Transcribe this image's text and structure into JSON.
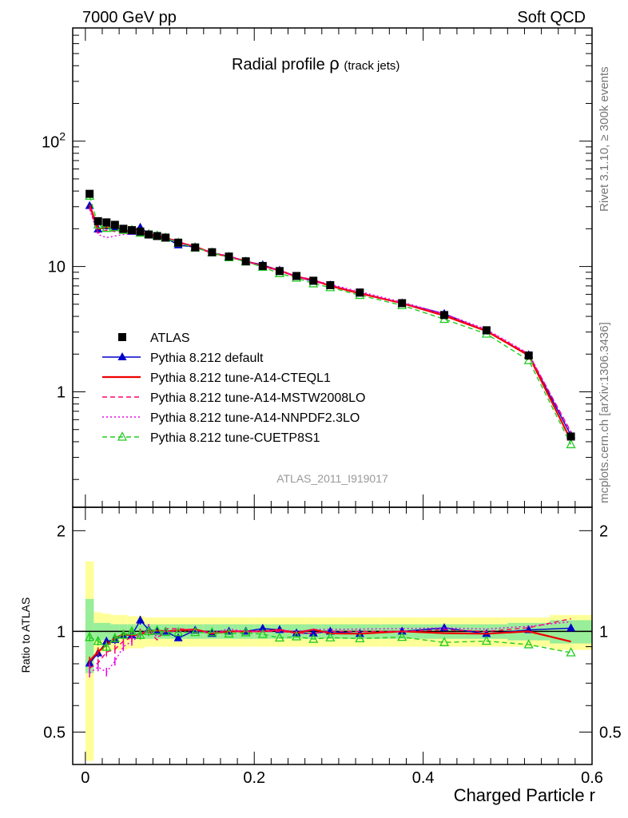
{
  "header": {
    "left": "7000 GeV pp",
    "right": "Soft QCD"
  },
  "side_labels": {
    "rivet": "Rivet 3.1.10, ≥ 300k events",
    "mcplots": "mcplots.cern.ch [arXiv:1306.3436]"
  },
  "chart_data": {
    "type": "line",
    "title": "Radial profile",
    "title_symbol": "ρ",
    "title_suffix": "(track jets)",
    "analysis_tag": "ATLAS_2011_I919017",
    "xlabel": "Charged Particle r",
    "ylabel_ratio": "Ratio to ATLAS",
    "xlim": [
      -0.015,
      0.6
    ],
    "ylim_main": [
      0.12,
      800
    ],
    "ylim_ratio": [
      0.4,
      2.35
    ],
    "yscale_main": "log",
    "yscale_ratio": "log",
    "x_ticks": [
      "0",
      "0.2",
      "0.4",
      "0.6"
    ],
    "y_ticks_main": [
      "1",
      "10",
      "10^2"
    ],
    "y_ticks_ratio": [
      "0.5",
      "1",
      "2"
    ],
    "legend_position": "left-lower-middle",
    "x": [
      0.005,
      0.015,
      0.025,
      0.035,
      0.045,
      0.055,
      0.065,
      0.075,
      0.085,
      0.095,
      0.11,
      0.13,
      0.15,
      0.17,
      0.19,
      0.21,
      0.23,
      0.25,
      0.27,
      0.29,
      0.325,
      0.375,
      0.425,
      0.475,
      0.525,
      0.575
    ],
    "data": {
      "name": "ATLAS",
      "values": [
        38,
        23,
        22.5,
        21.5,
        20,
        19.5,
        19,
        18,
        17.5,
        17,
        15.5,
        14.2,
        13,
        12,
        11,
        10.1,
        9.2,
        8.4,
        7.7,
        7.1,
        6.2,
        5.1,
        4.1,
        3.1,
        1.95,
        0.44
      ],
      "ratio_band_stat": [
        0.25,
        0.06,
        0.06,
        0.05,
        0.05,
        0.05,
        0.05,
        0.05,
        0.05,
        0.05,
        0.05,
        0.05,
        0.05,
        0.05,
        0.05,
        0.05,
        0.05,
        0.05,
        0.05,
        0.05,
        0.05,
        0.05,
        0.05,
        0.05,
        0.06,
        0.08
      ],
      "ratio_band_total": [
        0.62,
        0.14,
        0.13,
        0.12,
        0.12,
        0.11,
        0.11,
        0.1,
        0.1,
        0.1,
        0.1,
        0.1,
        0.1,
        0.1,
        0.1,
        0.1,
        0.1,
        0.1,
        0.1,
        0.1,
        0.1,
        0.1,
        0.1,
        0.1,
        0.1,
        0.12
      ]
    },
    "series": [
      {
        "name": "Pythia 8.212 default",
        "color": "#0000cc",
        "dash": "solid",
        "marker": "triangle-filled",
        "values": [
          30.5,
          19.8,
          21,
          20.3,
          19.5,
          19,
          20.5,
          18.2,
          17.5,
          17,
          14.8,
          14.3,
          12.8,
          12,
          11,
          10.3,
          9.3,
          8.3,
          7.6,
          7.1,
          6.1,
          5.1,
          4.2,
          3.05,
          1.97,
          0.45
        ]
      },
      {
        "name": "Pythia 8.212 tune-A14-CTEQL1",
        "color": "#ee0000",
        "dash": "solid",
        "marker": "none",
        "values": [
          31,
          20,
          20.5,
          20.5,
          19.6,
          19,
          18.6,
          18,
          17.6,
          17,
          15.6,
          14.4,
          12.8,
          12,
          11,
          10.1,
          9.3,
          8.3,
          7.8,
          7.0,
          6.1,
          5.1,
          4.05,
          3.05,
          1.95,
          0.41
        ]
      },
      {
        "name": "Pythia 8.212 tune-A14-MSTW2008LO",
        "color": "#ff0066",
        "dash": "dashed",
        "marker": "none",
        "values": [
          29.5,
          18.5,
          19.5,
          19,
          18.7,
          18.7,
          18.8,
          18,
          16.5,
          17.3,
          15.8,
          14.3,
          12.9,
          12,
          11,
          10.1,
          9.2,
          8.3,
          7.6,
          7.1,
          6.2,
          5.1,
          4.15,
          3.1,
          2.0,
          0.48
        ]
      },
      {
        "name": "Pythia 8.212 tune-A14-NNPDF2.3LO",
        "color": "#ee00ee",
        "dash": "dotted",
        "marker": "none",
        "values": [
          28.5,
          18,
          17,
          17.5,
          18,
          18.2,
          18.5,
          18.4,
          16.8,
          17,
          15.5,
          14.1,
          12.9,
          12.2,
          11,
          10.1,
          9.3,
          8.4,
          7.8,
          7.2,
          6.3,
          5.2,
          4.2,
          3.15,
          2.02,
          0.47
        ]
      },
      {
        "name": "Pythia 8.212 tune-CUETP8S1",
        "color": "#22cc22",
        "dash": "dashed",
        "marker": "triangle-open",
        "values": [
          36.5,
          21.5,
          20.2,
          20.5,
          19.5,
          19.5,
          18.5,
          18,
          17.6,
          16.9,
          15.4,
          14.1,
          12.9,
          11.8,
          10.9,
          9.9,
          8.8,
          8.1,
          7.3,
          6.8,
          5.9,
          4.9,
          3.8,
          2.9,
          1.78,
          0.38
        ]
      }
    ]
  }
}
